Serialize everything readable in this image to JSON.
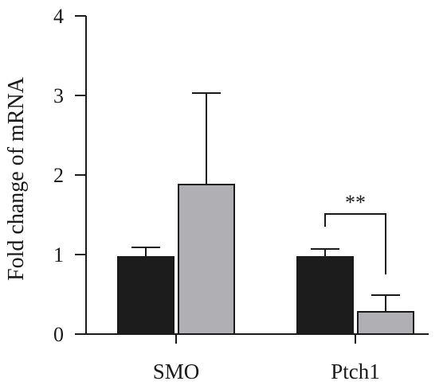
{
  "chart_data": {
    "type": "bar",
    "categories": [
      "SMO",
      "Ptch1"
    ],
    "series": [
      {
        "values": [
          0.97,
          0.97
        ],
        "errors": [
          0.12,
          0.1
        ],
        "color": "#1c1c1c"
      },
      {
        "values": [
          1.88,
          0.28
        ],
        "errors": [
          1.15,
          0.21
        ],
        "color": "#b0b0b4"
      }
    ],
    "ylabel": "Fold change of mRNA",
    "xlabel": "",
    "title": "",
    "ylim": [
      0,
      4
    ],
    "yticks": [
      0,
      1,
      2,
      3,
      4
    ],
    "significance": [
      {
        "category": "Ptch1",
        "label": "**"
      }
    ],
    "grid": false,
    "legend": "none"
  }
}
